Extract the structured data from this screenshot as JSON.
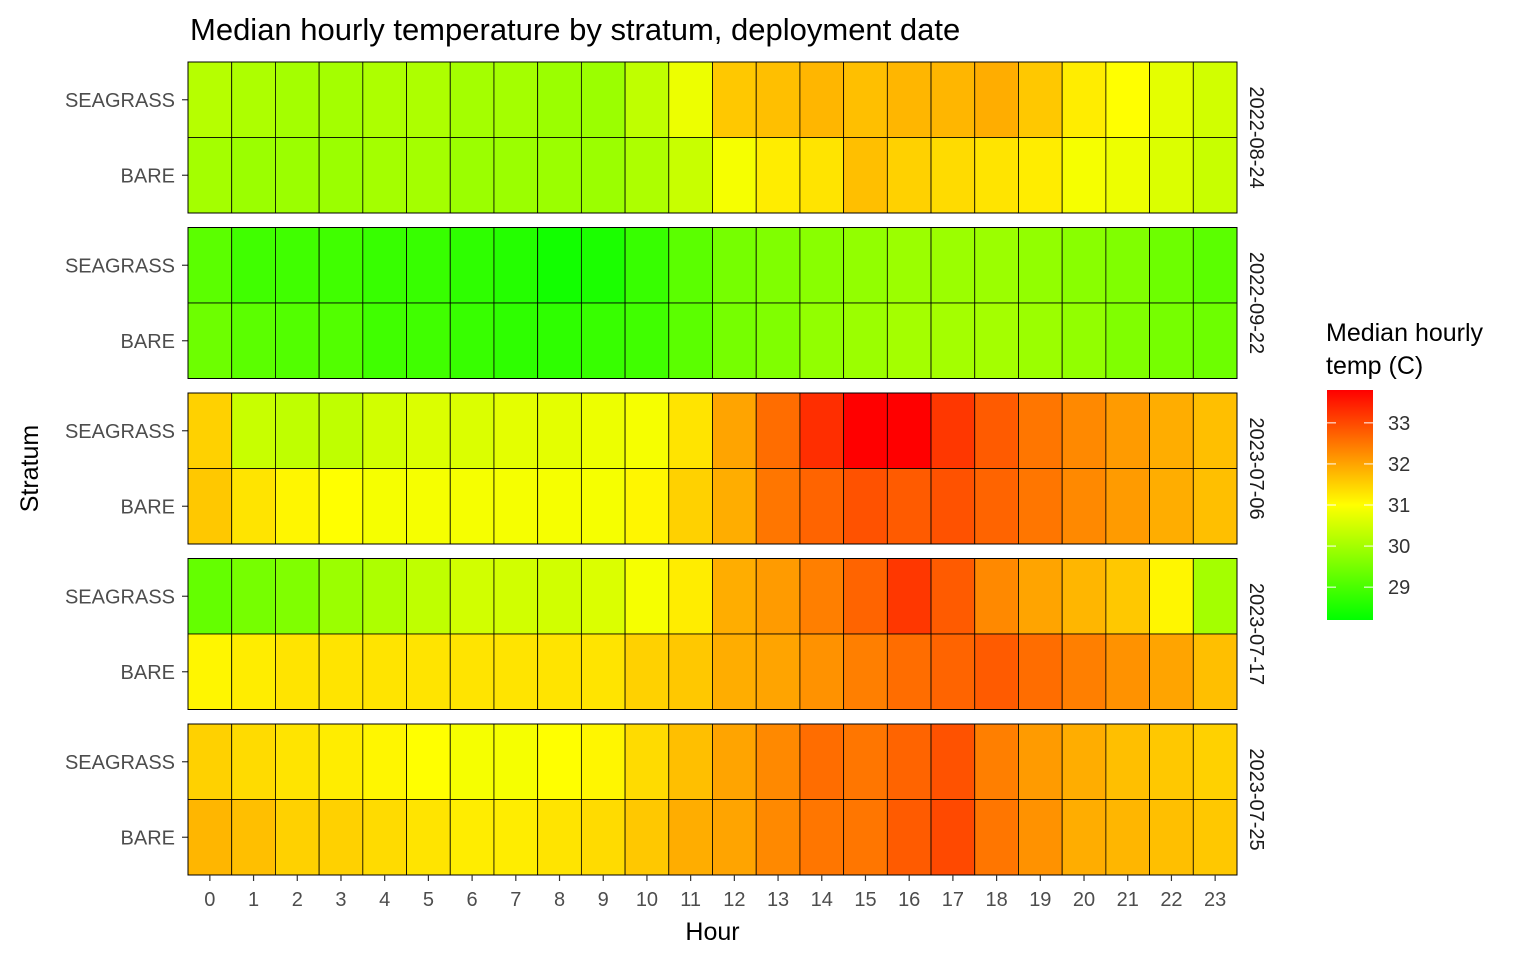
{
  "chart_data": {
    "type": "heatmap",
    "title": "Median hourly temperature by stratum, deployment date",
    "xlabel": "Hour",
    "ylabel": "Stratum",
    "hours": [
      0,
      1,
      2,
      3,
      4,
      5,
      6,
      7,
      8,
      9,
      10,
      11,
      12,
      13,
      14,
      15,
      16,
      17,
      18,
      19,
      20,
      21,
      22,
      23
    ],
    "strata": [
      "SEAGRASS",
      "BARE"
    ],
    "facets": [
      {
        "date": "2022-08-24",
        "rows": {
          "SEAGRASS": [
            30.2,
            30.1,
            30.0,
            30.0,
            30.1,
            30.1,
            30.0,
            30.0,
            29.9,
            29.9,
            30.3,
            30.8,
            31.6,
            31.7,
            31.8,
            31.7,
            31.8,
            31.8,
            31.9,
            31.6,
            31.2,
            31.0,
            30.7,
            30.5
          ],
          "BARE": [
            30.0,
            29.9,
            29.9,
            29.9,
            30.0,
            30.0,
            29.9,
            29.9,
            29.9,
            29.9,
            30.1,
            30.4,
            30.9,
            31.2,
            31.3,
            31.7,
            31.5,
            31.4,
            31.3,
            31.2,
            30.9,
            30.8,
            30.6,
            30.4
          ]
        }
      },
      {
        "date": "2022-09-22",
        "rows": {
          "SEAGRASS": [
            29.2,
            28.9,
            28.9,
            28.9,
            28.8,
            28.8,
            28.7,
            28.6,
            28.4,
            28.5,
            28.8,
            29.2,
            29.5,
            29.6,
            29.7,
            29.8,
            29.9,
            29.9,
            29.9,
            29.8,
            29.7,
            29.6,
            29.4,
            29.2
          ],
          "BARE": [
            29.4,
            29.2,
            29.1,
            29.1,
            28.9,
            28.9,
            28.8,
            28.7,
            28.7,
            28.8,
            28.9,
            29.2,
            29.5,
            29.6,
            29.8,
            29.9,
            30.0,
            30.0,
            30.0,
            29.9,
            29.8,
            29.6,
            29.5,
            29.4
          ]
        }
      },
      {
        "date": "2023-07-06",
        "rows": {
          "SEAGRASS": [
            31.5,
            30.4,
            30.3,
            30.3,
            30.5,
            30.6,
            30.6,
            30.7,
            30.7,
            30.8,
            30.9,
            31.3,
            32.0,
            32.6,
            33.3,
            34.0,
            33.8,
            33.2,
            32.8,
            32.5,
            32.3,
            32.1,
            31.9,
            31.7
          ],
          "BARE": [
            31.6,
            31.3,
            31.1,
            31.0,
            30.9,
            30.9,
            30.9,
            30.9,
            30.9,
            30.9,
            31.1,
            31.5,
            31.9,
            32.5,
            32.7,
            32.9,
            32.8,
            32.9,
            32.7,
            32.5,
            32.3,
            32.1,
            31.9,
            31.7
          ]
        }
      },
      {
        "date": "2023-07-17",
        "rows": {
          "SEAGRASS": [
            29.3,
            29.5,
            29.6,
            29.9,
            30.1,
            30.3,
            30.5,
            30.5,
            30.5,
            30.6,
            30.9,
            31.2,
            31.9,
            32.1,
            32.4,
            32.7,
            33.2,
            32.8,
            32.3,
            32.0,
            31.8,
            31.6,
            31.1,
            30.0
          ],
          "BARE": [
            31.1,
            31.2,
            31.3,
            31.3,
            31.3,
            31.3,
            31.3,
            31.3,
            31.3,
            31.3,
            31.5,
            31.6,
            31.9,
            32.0,
            32.2,
            32.4,
            32.6,
            32.7,
            32.8,
            32.6,
            32.4,
            32.2,
            32.0,
            31.7
          ]
        }
      },
      {
        "date": "2023-07-25",
        "rows": {
          "SEAGRASS": [
            31.5,
            31.4,
            31.3,
            31.2,
            31.1,
            31.0,
            30.9,
            30.9,
            31.0,
            31.1,
            31.4,
            31.7,
            32.0,
            32.3,
            32.6,
            32.5,
            32.7,
            32.9,
            32.4,
            32.1,
            31.9,
            31.7,
            31.6,
            31.5
          ],
          "BARE": [
            31.8,
            31.7,
            31.5,
            31.5,
            31.4,
            31.3,
            31.2,
            31.2,
            31.3,
            31.4,
            31.6,
            31.9,
            32.0,
            32.3,
            32.5,
            32.5,
            32.8,
            33.0,
            32.5,
            32.2,
            31.9,
            31.8,
            31.7,
            31.6
          ]
        }
      }
    ],
    "legend": {
      "title_lines": [
        "Median hourly",
        "temp (C)"
      ],
      "min": 28.2,
      "max": 33.8,
      "ticks": [
        29,
        30,
        31,
        32,
        33
      ],
      "colors": [
        "#00ff00",
        "#ffff00",
        "#ff0000"
      ],
      "placement": "right"
    }
  }
}
